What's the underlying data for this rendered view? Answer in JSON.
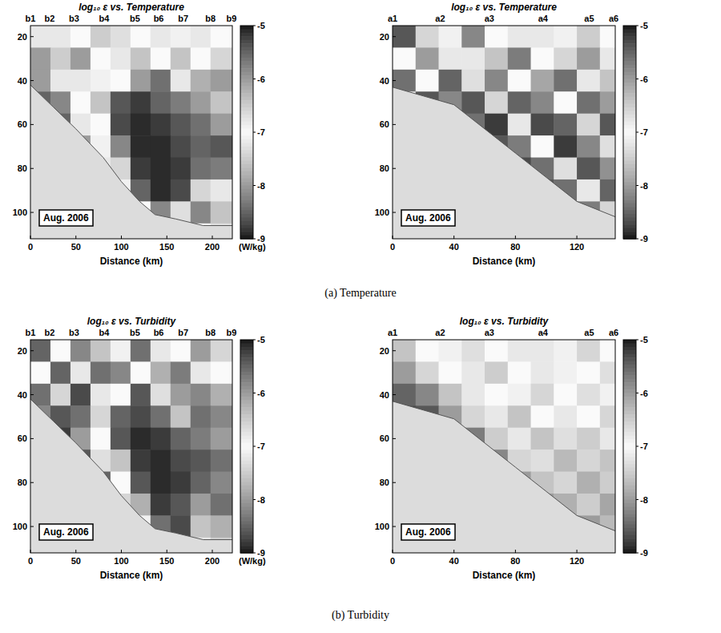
{
  "chart_data": [
    {
      "type": "heatmap",
      "title": "log₁₀ ε vs. Temperature",
      "xlabel": "Distance (km)",
      "annotation": "Aug. 2006",
      "xlim": [
        0,
        222
      ],
      "ylim": [
        15,
        112
      ],
      "xticks": [
        0,
        50,
        100,
        150,
        200
      ],
      "yticks": [
        20,
        40,
        60,
        80,
        100
      ],
      "stations": {
        "labels": [
          "b1",
          "b2",
          "b3",
          "b4",
          "b5",
          "b6",
          "b7",
          "b8",
          "b9"
        ],
        "x": [
          0,
          21,
          48,
          81,
          115,
          141,
          168,
          198,
          221
        ]
      },
      "bottom": {
        "x": [
          0,
          25,
          50,
          80,
          100,
          120,
          137,
          160,
          190,
          222
        ],
        "depth": [
          42,
          52,
          62,
          75,
          86,
          95,
          101,
          103,
          106,
          106
        ]
      },
      "x_edges": [
        0,
        22,
        44,
        66,
        88,
        110,
        132,
        154,
        176,
        198,
        222
      ],
      "depth_edges": [
        15,
        25,
        35,
        45,
        55,
        65,
        75,
        85,
        95,
        105,
        112
      ],
      "cells": [
        [
          -7.2,
          -6.8,
          -7.0,
          -6.5,
          -7.3,
          -7.0,
          -6.8,
          -6.9,
          -7.2,
          -7.0
        ],
        [
          -6.0,
          -7.5,
          -8.0,
          -7.0,
          -6.8,
          -7.6,
          -7.0,
          -6.4,
          -7.0,
          -7.4
        ],
        [
          -8.0,
          -7.2,
          -6.8,
          -7.1,
          -7.0,
          -8.0,
          -8.4,
          -7.2,
          -7.8,
          -8.0
        ],
        [
          -8.5,
          -8.2,
          -7.0,
          -7.6,
          -8.6,
          -8.8,
          -8.5,
          -8.3,
          -8.0,
          -7.6
        ],
        [
          -8.5,
          -8.5,
          -7.2,
          -7.0,
          -8.7,
          -8.9,
          -8.8,
          -8.6,
          -8.4,
          -8.0
        ],
        [
          -8.5,
          -8.5,
          -8.0,
          -6.9,
          -8.2,
          -8.9,
          -8.9,
          -8.7,
          -8.5,
          -8.6
        ],
        [
          -8.5,
          -8.5,
          -8.0,
          -7.2,
          -7.4,
          -8.8,
          -8.9,
          -8.8,
          -8.4,
          -8.3
        ],
        [
          -8.5,
          -8.5,
          -8.0,
          -8.0,
          -6.9,
          -8.5,
          -8.9,
          -8.7,
          -7.4,
          -7.2
        ],
        [
          -8.5,
          -8.5,
          -8.0,
          -8.0,
          -7.2,
          -7.0,
          -8.2,
          -7.3,
          -8.2,
          -7.6
        ],
        [
          -8.5,
          -8.5,
          -8.0,
          -8.0,
          -8.0,
          -7.3,
          -7.1,
          -8.0,
          -7.0,
          -7.3
        ]
      ],
      "colorbar": {
        "range": [
          -9,
          -5
        ],
        "ticks": [
          -5,
          -6,
          -7,
          -8,
          -9
        ],
        "label": "(W/kg)"
      }
    },
    {
      "type": "heatmap",
      "title": "log₁₀ ε vs. Temperature",
      "xlabel": "Distance (km)",
      "annotation": "Aug. 2006",
      "xlim": [
        0,
        145
      ],
      "ylim": [
        15,
        112
      ],
      "xticks": [
        0,
        40,
        80,
        120
      ],
      "yticks": [
        20,
        40,
        60,
        80,
        100
      ],
      "stations": {
        "labels": [
          "a1",
          "a2",
          "a3",
          "a4",
          "a5",
          "a6"
        ],
        "x": [
          0,
          31,
          63,
          98,
          128,
          144
        ]
      },
      "bottom": {
        "x": [
          0,
          20,
          40,
          60,
          80,
          100,
          120,
          145
        ],
        "depth": [
          43,
          47,
          51,
          62,
          73,
          84,
          95,
          102
        ]
      },
      "x_edges": [
        0,
        15,
        30,
        45,
        60,
        75,
        90,
        105,
        120,
        135,
        145
      ],
      "depth_edges": [
        15,
        25,
        35,
        45,
        55,
        65,
        75,
        85,
        95,
        105,
        112
      ],
      "cells": [
        [
          -8.6,
          -7.4,
          -6.9,
          -8.2,
          -7.0,
          -6.8,
          -7.2,
          -6.9,
          -7.5,
          -7.0
        ],
        [
          -7.0,
          -8.0,
          -7.2,
          -6.8,
          -7.6,
          -8.3,
          -7.0,
          -7.4,
          -8.0,
          -7.2
        ],
        [
          -8.4,
          -7.0,
          -8.5,
          -7.3,
          -8.2,
          -7.0,
          -7.9,
          -8.4,
          -7.2,
          -7.6
        ],
        [
          -7.2,
          -8.6,
          -8.2,
          -8.6,
          -7.4,
          -8.5,
          -8.2,
          -7.0,
          -8.4,
          -8.0
        ],
        [
          -8.0,
          -8.0,
          -7.1,
          -8.4,
          -8.8,
          -7.2,
          -8.7,
          -8.5,
          -7.4,
          -8.6
        ],
        [
          -8.0,
          -8.0,
          -8.2,
          -7.0,
          -8.6,
          -8.3,
          -7.0,
          -8.8,
          -8.2,
          -7.3
        ],
        [
          -8.0,
          -8.0,
          -8.0,
          -8.3,
          -7.2,
          -8.7,
          -8.4,
          -7.3,
          -8.6,
          -8.1
        ],
        [
          -8.0,
          -8.0,
          -8.0,
          -8.0,
          -8.5,
          -7.1,
          -8.6,
          -8.4,
          -7.2,
          -8.5
        ],
        [
          -8.0,
          -8.0,
          -8.0,
          -8.0,
          -8.0,
          -8.4,
          -7.3,
          -8.7,
          -8.3,
          -7.4
        ],
        [
          -8.0,
          -8.0,
          -8.0,
          -8.0,
          -8.0,
          -8.0,
          -8.2,
          -7.2,
          -8.6,
          -8.0
        ]
      ],
      "colorbar": {
        "range": [
          -9,
          -5
        ],
        "ticks": [
          -5,
          -6,
          -7,
          -8,
          -9
        ]
      }
    },
    {
      "type": "heatmap",
      "title": "log₁₀ ε vs. Turbidity",
      "xlabel": "Distance (km)",
      "annotation": "Aug. 2006",
      "xlim": [
        0,
        222
      ],
      "ylim": [
        15,
        112
      ],
      "xticks": [
        0,
        50,
        100,
        150,
        200
      ],
      "yticks": [
        20,
        40,
        60,
        80,
        100
      ],
      "stations": {
        "labels": [
          "b1",
          "b2",
          "b3",
          "b4",
          "b5",
          "b6",
          "b7",
          "b8",
          "b9"
        ],
        "x": [
          0,
          21,
          48,
          81,
          115,
          141,
          168,
          198,
          221
        ]
      },
      "bottom": {
        "x": [
          0,
          25,
          50,
          80,
          100,
          120,
          137,
          160,
          190,
          222
        ],
        "depth": [
          42,
          52,
          62,
          75,
          86,
          95,
          101,
          103,
          106,
          106
        ]
      },
      "x_edges": [
        0,
        22,
        44,
        66,
        88,
        110,
        132,
        154,
        176,
        198,
        222
      ],
      "depth_edges": [
        15,
        25,
        35,
        45,
        55,
        65,
        75,
        85,
        95,
        105,
        112
      ],
      "cells": [
        [
          -8.5,
          -7.0,
          -8.2,
          -7.6,
          -6.9,
          -8.4,
          -7.2,
          -7.0,
          -8.0,
          -7.4
        ],
        [
          -7.0,
          -8.5,
          -6.8,
          -8.4,
          -8.2,
          -7.0,
          -7.8,
          -8.3,
          -7.2,
          -7.0
        ],
        [
          -8.4,
          -7.4,
          -8.7,
          -7.2,
          -7.0,
          -8.6,
          -7.3,
          -8.0,
          -8.2,
          -7.8
        ],
        [
          -8.2,
          -8.6,
          -8.4,
          -7.4,
          -8.5,
          -8.7,
          -8.4,
          -7.6,
          -8.4,
          -8.2
        ],
        [
          -8.5,
          -8.8,
          -8.0,
          -7.0,
          -8.6,
          -8.9,
          -8.8,
          -8.5,
          -8.3,
          -8.0
        ],
        [
          -8.5,
          -8.5,
          -8.6,
          -7.3,
          -7.6,
          -8.8,
          -8.9,
          -8.7,
          -8.6,
          -8.4
        ],
        [
          -8.5,
          -8.5,
          -8.5,
          -8.5,
          -7.0,
          -8.6,
          -8.9,
          -8.8,
          -8.5,
          -8.2
        ],
        [
          -8.5,
          -8.5,
          -8.5,
          -8.5,
          -7.4,
          -7.8,
          -8.8,
          -8.6,
          -8.0,
          -8.4
        ],
        [
          -8.5,
          -8.5,
          -8.5,
          -8.5,
          -8.5,
          -7.1,
          -8.4,
          -8.7,
          -7.6,
          -7.8
        ],
        [
          -8.5,
          -8.5,
          -8.5,
          -8.5,
          -8.5,
          -7.4,
          -7.0,
          -8.2,
          -7.2,
          -7.5
        ]
      ],
      "colorbar": {
        "range": [
          -9,
          -5
        ],
        "ticks": [
          -5,
          -6,
          -7,
          -8,
          -9
        ],
        "label": "(W/kg)"
      }
    },
    {
      "type": "heatmap",
      "title": "log₁₀ ε vs. Turbidity",
      "xlabel": "Distance (km)",
      "annotation": "Aug. 2006",
      "xlim": [
        0,
        145
      ],
      "ylim": [
        15,
        112
      ],
      "xticks": [
        0,
        40,
        80,
        120
      ],
      "yticks": [
        20,
        40,
        60,
        80,
        100
      ],
      "stations": {
        "labels": [
          "a1",
          "a2",
          "a3",
          "a4",
          "a5",
          "a6"
        ],
        "x": [
          0,
          31,
          63,
          98,
          128,
          144
        ]
      },
      "bottom": {
        "x": [
          0,
          20,
          40,
          60,
          80,
          100,
          120,
          145
        ],
        "depth": [
          43,
          47,
          51,
          62,
          73,
          84,
          95,
          102
        ]
      },
      "x_edges": [
        0,
        15,
        30,
        45,
        60,
        75,
        90,
        105,
        120,
        135,
        145
      ],
      "depth_edges": [
        15,
        25,
        35,
        45,
        55,
        65,
        75,
        85,
        95,
        105,
        112
      ],
      "cells": [
        [
          -7.6,
          -7.0,
          -6.9,
          -7.3,
          -7.0,
          -7.2,
          -6.8,
          -7.1,
          -7.4,
          -7.0
        ],
        [
          -8.0,
          -7.4,
          -7.0,
          -6.8,
          -7.5,
          -7.0,
          -7.2,
          -6.9,
          -7.0,
          -7.3
        ],
        [
          -8.5,
          -8.2,
          -7.6,
          -7.2,
          -7.0,
          -6.9,
          -7.4,
          -7.0,
          -7.3,
          -6.9
        ],
        [
          -8.7,
          -8.6,
          -8.0,
          -7.4,
          -7.2,
          -7.6,
          -7.0,
          -7.2,
          -7.0,
          -7.4
        ],
        [
          -8.5,
          -8.5,
          -8.7,
          -8.3,
          -7.5,
          -7.2,
          -7.6,
          -7.3,
          -7.5,
          -7.2
        ],
        [
          -8.5,
          -8.5,
          -8.5,
          -8.6,
          -8.2,
          -7.4,
          -7.3,
          -7.7,
          -7.4,
          -7.6
        ],
        [
          -8.5,
          -8.5,
          -8.5,
          -8.5,
          -8.6,
          -8.0,
          -7.6,
          -7.4,
          -7.8,
          -7.5
        ],
        [
          -8.5,
          -8.5,
          -8.5,
          -8.5,
          -8.5,
          -8.6,
          -8.0,
          -7.8,
          -7.5,
          -7.9
        ],
        [
          -8.5,
          -8.5,
          -8.5,
          -8.5,
          -8.5,
          -8.5,
          -8.6,
          -8.3,
          -8.0,
          -7.7
        ],
        [
          -8.5,
          -8.5,
          -8.5,
          -8.5,
          -8.5,
          -8.5,
          -8.5,
          -8.7,
          -8.5,
          -8.2
        ]
      ],
      "colorbar": {
        "range": [
          -9,
          -5
        ],
        "ticks": [
          -5,
          -6,
          -7,
          -8,
          -9
        ]
      }
    }
  ],
  "captions": [
    "(a) Temperature",
    "(b) Turbidity"
  ]
}
